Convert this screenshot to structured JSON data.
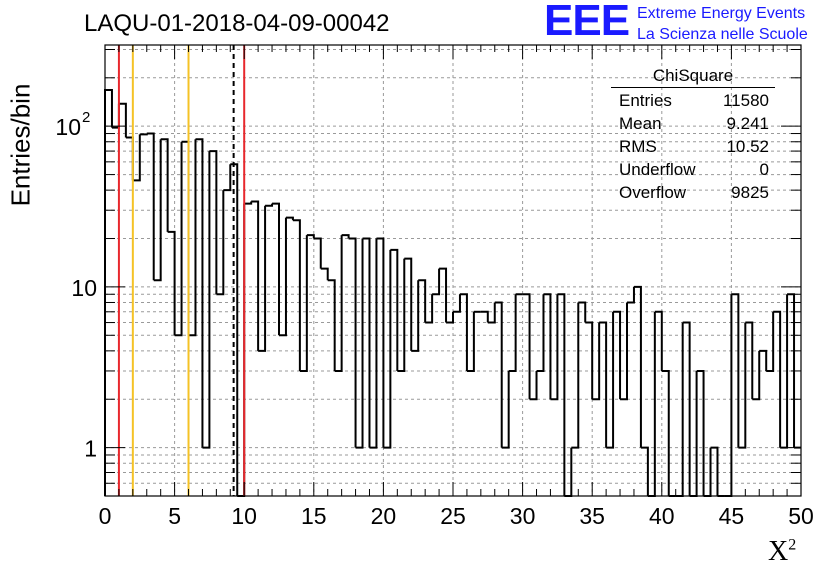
{
  "page_title": "LAQU-01-2018-04-09-00042",
  "logo": {
    "mark": "EEE",
    "line1": "Extreme Energy Events",
    "line2": "La Scienza nelle Scuole"
  },
  "stats_box": {
    "title": "ChiSquare",
    "rows": [
      {
        "label": "Entries",
        "value": "11580"
      },
      {
        "label": "Mean",
        "value": "9.241"
      },
      {
        "label": "RMS",
        "value": "10.52"
      },
      {
        "label": "Underflow",
        "value": "0"
      },
      {
        "label": "Overflow",
        "value": "9825"
      }
    ]
  },
  "chart_data": {
    "type": "bar",
    "style": "step-histogram",
    "title": "LAQU-01-2018-04-09-00042",
    "xlabel": "X",
    "xlabel_superscript": "2",
    "ylabel": "Entries/bin",
    "xlim": [
      0,
      50
    ],
    "ylim": [
      0.5,
      320
    ],
    "yscale": "log",
    "grid": true,
    "bin_width": 0.5,
    "x_ticks": [
      "0",
      "5",
      "10",
      "15",
      "20",
      "25",
      "30",
      "35",
      "40",
      "45",
      "50"
    ],
    "y_ticks": [
      {
        "value": 1,
        "label": "1"
      },
      {
        "value": 10,
        "label": "10"
      },
      {
        "value": 100,
        "label": "10",
        "exponent": "2"
      }
    ],
    "values": [
      168,
      98,
      138,
      85,
      46,
      89,
      90,
      11,
      83,
      22,
      5,
      80,
      5,
      83,
      1,
      70,
      9,
      40,
      58,
      0,
      33,
      34,
      4,
      32,
      33,
      5,
      27,
      26,
      3,
      21,
      20,
      13,
      11,
      3,
      21,
      20,
      1,
      20,
      1,
      20,
      1,
      17,
      3,
      15,
      4,
      11,
      6,
      9,
      13,
      6,
      7,
      9,
      3,
      7,
      7,
      6,
      8,
      1,
      3,
      9,
      9,
      2,
      3,
      9,
      2,
      9,
      0,
      1,
      8,
      6,
      2,
      6,
      1,
      7,
      2,
      8,
      10,
      1,
      0,
      7,
      3,
      0,
      0,
      6,
      0,
      3,
      0,
      1,
      0,
      0,
      9,
      1,
      6,
      2,
      4,
      3,
      7,
      1,
      9,
      1
    ],
    "vertical_lines": [
      {
        "x": 1.0,
        "color": "#e8282d",
        "style": "solid"
      },
      {
        "x": 2.0,
        "color": "#f5c226",
        "style": "solid"
      },
      {
        "x": 6.0,
        "color": "#f5c226",
        "style": "solid"
      },
      {
        "x": 9.241,
        "color": "#000000",
        "style": "dashed"
      },
      {
        "x": 10.0,
        "color": "#e8282d",
        "style": "solid"
      }
    ]
  }
}
